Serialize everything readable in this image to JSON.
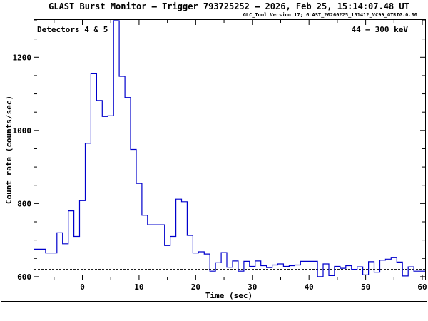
{
  "header": {
    "title": "GLAST Burst Monitor  –  Trigger 793725252  –  2026, Feb 25, 15:14:07.48 UT",
    "subtitle": "GLC_Tool Version 17; GLAST_20260225_151412_VC99_GTRIG.0.00"
  },
  "chart_data": {
    "type": "line",
    "step": true,
    "xlabel": "Time (sec)",
    "ylabel": "Count rate (counts/sec)",
    "xlim": [
      -8.5,
      60.5
    ],
    "ylim": [
      592,
      1302
    ],
    "x_ticks": [
      0,
      10,
      20,
      30,
      40,
      50,
      60
    ],
    "y_ticks": [
      600,
      800,
      1000,
      1200
    ],
    "annotations": {
      "left": "Detectors 4 & 5",
      "right": "44 – 300 keV"
    },
    "series_color": "#0000cc",
    "background_level": 620,
    "bin_edges": [
      -8.5,
      -6.5,
      -4.5,
      -3.5,
      -2.5,
      -1.5,
      -0.5,
      0.5,
      1.5,
      2.5,
      3.5,
      4.5,
      5.5,
      6.5,
      7.5,
      8.5,
      9.5,
      10.5,
      11.5,
      12.5,
      14.5,
      15.5,
      16.5,
      17.5,
      18.5,
      19.5,
      20.5,
      21.5,
      22.5,
      23.5,
      24.5,
      25.5,
      26.5,
      27.5,
      28.5,
      29.5,
      30.5,
      31.5,
      32.5,
      33.5,
      34.5,
      35.5,
      36.5,
      37.5,
      38.5,
      41.5,
      42.5,
      43.5,
      44.5,
      45.5,
      46.5,
      47.5,
      48.5,
      49.5,
      50.5,
      51.5,
      52.5,
      53.5,
      54.5,
      55.5,
      56.5,
      57.5,
      58.5,
      60.5
    ],
    "counts": [
      675,
      665,
      720,
      690,
      780,
      710,
      808,
      965,
      1155,
      1082,
      1038,
      1040,
      1300,
      1148,
      1090,
      948,
      855,
      768,
      742,
      742,
      685,
      710,
      812,
      805,
      713,
      665,
      668,
      662,
      615,
      638,
      666,
      626,
      643,
      615,
      642,
      628,
      643,
      630,
      625,
      632,
      635,
      628,
      630,
      632,
      642,
      600,
      635,
      603,
      628,
      623,
      630,
      620,
      627,
      605,
      641,
      612,
      645,
      648,
      653,
      640,
      602,
      627,
      615
    ]
  }
}
